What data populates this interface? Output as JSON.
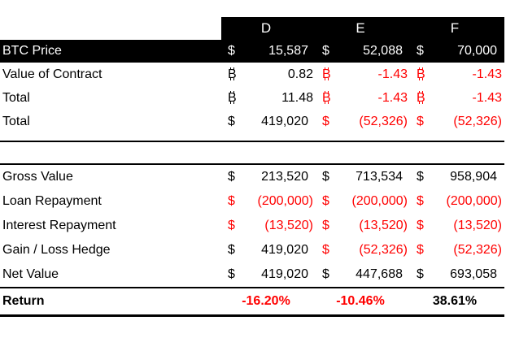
{
  "colors": {
    "negative_red": "#ff0000",
    "header_bg": "#000000",
    "header_text": "#ffffff"
  },
  "header": {
    "cols": [
      "D",
      "E",
      "F"
    ]
  },
  "rows": [
    {
      "label": "BTC Price",
      "cells": [
        {
          "sym": "$",
          "num": "15,587"
        },
        {
          "sym": "$",
          "num": "52,088"
        },
        {
          "sym": "$",
          "num": "70,000"
        }
      ]
    },
    {
      "label": "Value of Contract",
      "cells": [
        {
          "sym": "₿",
          "num": "0.82"
        },
        {
          "sym": "₿",
          "num": "-1.43",
          "neg": true
        },
        {
          "sym": "₿",
          "num": "-1.43",
          "neg": true
        }
      ]
    },
    {
      "label": "Total",
      "cells": [
        {
          "sym": "₿",
          "num": "11.48"
        },
        {
          "sym": "₿",
          "num": "-1.43",
          "neg": true
        },
        {
          "sym": "₿",
          "num": "-1.43",
          "neg": true
        }
      ]
    },
    {
      "label": "Total",
      "cells": [
        {
          "sym": "$",
          "num": "419,020"
        },
        {
          "sym": "$",
          "num": "(52,326)",
          "neg": true
        },
        {
          "sym": "$",
          "num": "(52,326)",
          "neg": true
        }
      ]
    },
    {
      "label": "Gross Value",
      "cells": [
        {
          "sym": "$",
          "num": "213,520"
        },
        {
          "sym": "$",
          "num": "713,534"
        },
        {
          "sym": "$",
          "num": "958,904"
        }
      ]
    },
    {
      "label": "Loan Repayment",
      "cells": [
        {
          "sym": "$",
          "num": "(200,000)",
          "neg": true
        },
        {
          "sym": "$",
          "num": "(200,000)",
          "neg": true
        },
        {
          "sym": "$",
          "num": "(200,000)",
          "neg": true
        }
      ]
    },
    {
      "label": "Interest Repayment",
      "cells": [
        {
          "sym": "$",
          "num": "(13,520)",
          "neg": true
        },
        {
          "sym": "$",
          "num": "(13,520)",
          "neg": true
        },
        {
          "sym": "$",
          "num": "(13,520)",
          "neg": true
        }
      ]
    },
    {
      "label": "Gain / Loss Hedge",
      "cells": [
        {
          "sym": "$",
          "num": "419,020"
        },
        {
          "sym": "$",
          "num": "(52,326)",
          "neg": true
        },
        {
          "sym": "$",
          "num": "(52,326)",
          "neg": true
        }
      ]
    },
    {
      "label": "Net Value",
      "cells": [
        {
          "sym": "$",
          "num": "419,020"
        },
        {
          "sym": "$",
          "num": "447,688"
        },
        {
          "sym": "$",
          "num": "693,058"
        }
      ]
    }
  ],
  "return_row": {
    "label": "Return",
    "values": [
      {
        "num": "-16.20%",
        "neg": true
      },
      {
        "num": "-10.46%",
        "neg": true
      },
      {
        "num": "38.61%"
      }
    ]
  }
}
